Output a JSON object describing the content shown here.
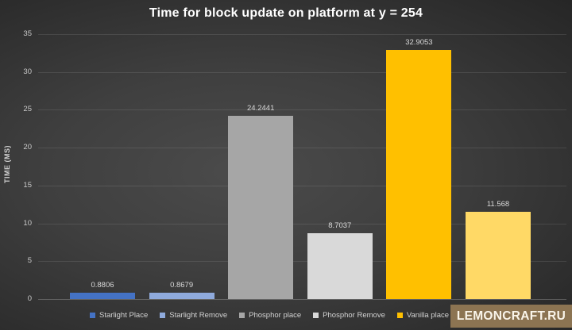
{
  "title": "Time for block update on platform at y = 254",
  "watermark": {
    "text": "LEMONCRAFT.RU",
    "bg": "#8C7452"
  },
  "chart_data": {
    "type": "bar",
    "title": "Time for block update on platform at y = 254",
    "xlabel": "",
    "ylabel": "TIME (MS)",
    "ylim": [
      0,
      35
    ],
    "yticks": [
      0,
      5,
      10,
      15,
      20,
      25,
      30,
      35
    ],
    "grid": true,
    "legend_position": "bottom",
    "background": "dark-gray-gradient",
    "series": [
      {
        "name": "Starlight Place",
        "value": 0.8806,
        "data_label": "0.8806",
        "color": "#4472C4"
      },
      {
        "name": "Starlight Remove",
        "value": 0.8679,
        "data_label": "0.8679",
        "color": "#8FAADC"
      },
      {
        "name": "Phosphor place",
        "value": 24.2441,
        "data_label": "24.2441",
        "color": "#A6A6A6"
      },
      {
        "name": "Phosphor Remove",
        "value": 8.7037,
        "data_label": "8.7037",
        "color": "#D9D9D9"
      },
      {
        "name": "Vanilla place",
        "value": 32.9053,
        "data_label": "32.9053",
        "color": "#FFC000"
      },
      {
        "name": "",
        "value": 11.568,
        "data_label": "11.568",
        "color": "#FFD966"
      }
    ]
  }
}
